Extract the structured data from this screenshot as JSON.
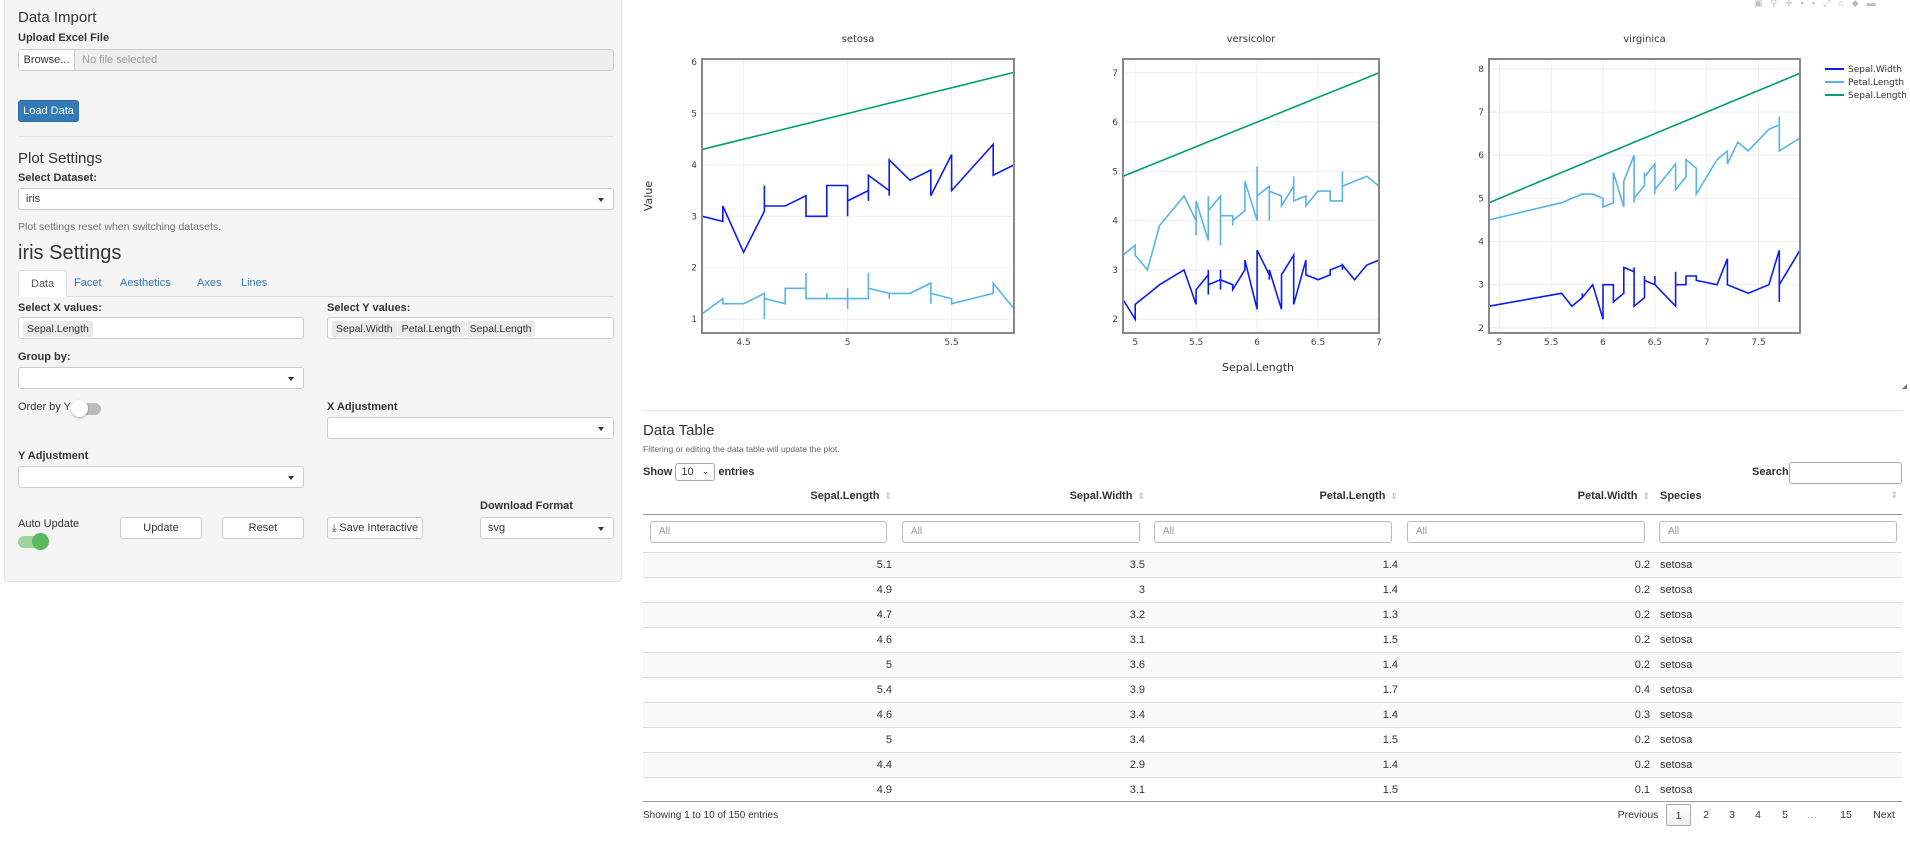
{
  "sidebar": {
    "data_import_title": "Data Import",
    "upload_label": "Upload Excel File",
    "browse_label": "Browse...",
    "file_placeholder": "No file selected",
    "load_button": "Load Data",
    "plot_settings_title": "Plot Settings",
    "select_dataset_label": "Select Dataset:",
    "dataset_value": "iris",
    "dataset_help": "Plot settings reset when switching datasets.",
    "settings_title": "iris Settings",
    "tabs": [
      {
        "label": "Data",
        "active": true
      },
      {
        "label": "Facet"
      },
      {
        "label": "Aesthetics"
      },
      {
        "label": "Axes"
      },
      {
        "label": "Lines"
      }
    ],
    "x_label": "Select X values:",
    "x_values": [
      "Sepal.Length"
    ],
    "y_label": "Select Y values:",
    "y_values": [
      "Sepal.Width",
      "Petal.Length",
      "Sepal.Length"
    ],
    "group_label": "Group by:",
    "group_value": "",
    "order_label": "Order by Y",
    "order_on": false,
    "x_adjust_label": "X Adjustment",
    "x_adjust_value": "",
    "y_adjust_label": "Y Adjustment",
    "y_adjust_value": "",
    "auto_update_label": "Auto Update",
    "auto_update_on": true,
    "update_button": "Update",
    "reset_button": "Reset",
    "save_button": "Save Interactive",
    "download_label": "Download Format",
    "download_value": "svg",
    "accent_color": "#337ab7",
    "toggle_on_color": "#5cb85c"
  },
  "chart_data": {
    "type": "line",
    "facet_by": "Species",
    "xlabel": "Sepal.Length",
    "ylabel": "Value",
    "legend_position": "top-right",
    "grid": true,
    "series": [
      {
        "name": "Sepal.Width",
        "color": "#0b1cf0"
      },
      {
        "name": "Petal.Length",
        "color": "#56b4e9"
      },
      {
        "name": "Sepal.Length",
        "color": "#009e73"
      }
    ],
    "panels": [
      {
        "title": "setosa",
        "xlim": [
          4.3,
          5.8
        ],
        "ylim": [
          0.73,
          6.06
        ],
        "xticks": [
          4.5,
          5,
          5.5
        ],
        "yticks": [
          1,
          2,
          3,
          4,
          5,
          6
        ],
        "data": {
          "Sepal.Length": [
            5.1,
            4.9,
            4.7,
            4.6,
            5.0,
            5.4,
            4.6,
            5.0,
            4.4,
            4.9,
            5.4,
            4.8,
            4.8,
            4.3,
            5.8,
            5.7,
            5.4,
            5.1,
            5.7,
            5.1,
            5.4,
            5.1,
            4.6,
            5.1,
            4.8,
            5.0,
            5.0,
            5.2,
            5.2,
            4.7,
            4.8,
            5.4,
            5.2,
            5.5,
            4.9,
            5.0,
            5.5,
            4.9,
            4.4,
            5.1,
            5.0,
            4.5,
            4.4,
            5.0,
            5.1,
            4.8,
            5.1,
            4.6,
            5.3,
            5.0
          ],
          "Sepal.Width": [
            3.5,
            3.0,
            3.2,
            3.1,
            3.6,
            3.9,
            3.4,
            3.4,
            2.9,
            3.1,
            3.7,
            3.4,
            3.0,
            3.0,
            4.0,
            4.4,
            3.9,
            3.5,
            3.8,
            3.8,
            3.4,
            3.7,
            3.6,
            3.3,
            3.4,
            3.0,
            3.4,
            3.5,
            3.4,
            3.2,
            3.1,
            3.4,
            4.1,
            4.2,
            3.1,
            3.2,
            3.5,
            3.6,
            3.0,
            3.4,
            3.5,
            2.3,
            3.2,
            3.5,
            3.8,
            3.0,
            3.8,
            3.2,
            3.7,
            3.3
          ],
          "Petal.Length": [
            1.4,
            1.4,
            1.3,
            1.5,
            1.4,
            1.7,
            1.4,
            1.5,
            1.4,
            1.5,
            1.5,
            1.6,
            1.4,
            1.1,
            1.2,
            1.5,
            1.3,
            1.4,
            1.7,
            1.5,
            1.7,
            1.5,
            1.0,
            1.7,
            1.9,
            1.6,
            1.6,
            1.5,
            1.4,
            1.6,
            1.6,
            1.5,
            1.5,
            1.4,
            1.5,
            1.2,
            1.3,
            1.4,
            1.3,
            1.5,
            1.3,
            1.3,
            1.3,
            1.6,
            1.9,
            1.4,
            1.6,
            1.4,
            1.5,
            1.4
          ]
        }
      },
      {
        "title": "versicolor",
        "xlim": [
          4.9,
          7.0
        ],
        "ylim": [
          1.72,
          7.28
        ],
        "xticks": [
          5,
          5.5,
          6,
          6.5,
          7
        ],
        "yticks": [
          2,
          3,
          4,
          5,
          6,
          7
        ],
        "data": {
          "Sepal.Length": [
            7.0,
            6.4,
            6.9,
            5.5,
            6.5,
            5.7,
            6.3,
            4.9,
            6.6,
            5.2,
            5.0,
            5.9,
            6.0,
            6.1,
            5.6,
            6.7,
            5.6,
            5.8,
            6.2,
            5.6,
            5.9,
            6.1,
            6.3,
            6.1,
            6.4,
            6.6,
            6.8,
            6.7,
            6.0,
            5.7,
            5.5,
            5.5,
            5.8,
            6.0,
            5.4,
            6.0,
            6.7,
            6.3,
            5.6,
            5.5,
            5.5,
            6.1,
            5.8,
            5.0,
            5.6,
            5.7,
            5.7,
            6.2,
            5.1,
            5.7
          ],
          "Sepal.Width": [
            3.2,
            3.2,
            3.1,
            2.3,
            2.8,
            2.8,
            3.3,
            2.4,
            2.9,
            2.7,
            2.0,
            3.0,
            2.2,
            2.9,
            2.9,
            3.1,
            3.0,
            2.7,
            2.2,
            2.5,
            3.2,
            2.8,
            2.5,
            2.8,
            2.9,
            3.0,
            2.8,
            3.0,
            2.9,
            2.6,
            2.4,
            2.4,
            2.7,
            2.7,
            3.0,
            3.4,
            3.1,
            2.3,
            3.0,
            2.5,
            2.6,
            3.0,
            2.6,
            2.3,
            2.7,
            3.0,
            2.9,
            2.9,
            2.5,
            2.8
          ],
          "Petal.Length": [
            4.7,
            4.5,
            4.9,
            4.0,
            4.6,
            4.5,
            4.7,
            3.3,
            4.6,
            3.9,
            3.5,
            4.2,
            4.0,
            4.7,
            3.6,
            4.4,
            4.5,
            4.1,
            4.5,
            3.9,
            4.8,
            4.0,
            4.9,
            4.7,
            4.3,
            4.4,
            4.8,
            5.0,
            4.5,
            3.5,
            3.8,
            3.7,
            3.9,
            5.1,
            4.5,
            4.5,
            4.7,
            4.4,
            4.1,
            4.0,
            4.4,
            4.6,
            4.0,
            3.3,
            4.2,
            4.2,
            4.2,
            4.3,
            3.0,
            4.1
          ]
        }
      },
      {
        "title": "virginica",
        "xlim": [
          4.9,
          7.9
        ],
        "ylim": [
          1.88,
          8.23
        ],
        "xticks": [
          5,
          5.5,
          6,
          6.5,
          7,
          7.5
        ],
        "yticks": [
          2,
          3,
          4,
          5,
          6,
          7,
          8
        ],
        "data": {
          "Sepal.Length": [
            6.3,
            5.8,
            7.1,
            6.3,
            6.5,
            7.6,
            4.9,
            7.3,
            6.7,
            7.2,
            6.5,
            6.4,
            6.8,
            5.7,
            5.8,
            6.4,
            6.5,
            7.7,
            7.7,
            6.0,
            6.9,
            5.6,
            7.7,
            6.3,
            6.7,
            7.2,
            6.2,
            6.1,
            6.4,
            7.2,
            7.4,
            7.9,
            6.4,
            6.3,
            6.1,
            7.7,
            6.3,
            6.4,
            6.0,
            6.9,
            6.7,
            6.9,
            5.8,
            6.8,
            6.7,
            6.7,
            6.3,
            6.5,
            6.2,
            5.9
          ],
          "Sepal.Width": [
            3.3,
            2.7,
            3.0,
            2.9,
            3.0,
            3.0,
            2.5,
            2.9,
            2.5,
            3.6,
            3.2,
            2.7,
            3.0,
            2.5,
            2.8,
            3.2,
            3.0,
            3.8,
            2.6,
            2.2,
            3.2,
            2.8,
            2.8,
            2.7,
            3.3,
            3.2,
            2.8,
            3.0,
            2.8,
            3.0,
            2.8,
            3.8,
            2.8,
            2.8,
            2.6,
            3.0,
            3.4,
            3.1,
            3.0,
            3.1,
            3.1,
            3.1,
            2.7,
            3.2,
            3.3,
            3.0,
            2.5,
            3.0,
            3.4,
            3.0
          ],
          "Petal.Length": [
            6.0,
            5.1,
            5.9,
            5.6,
            5.8,
            6.6,
            4.5,
            6.3,
            5.8,
            6.1,
            5.1,
            5.3,
            5.5,
            5.0,
            5.1,
            5.3,
            5.5,
            6.7,
            6.9,
            5.0,
            5.7,
            4.9,
            6.7,
            4.9,
            5.7,
            6.0,
            4.8,
            4.9,
            5.6,
            5.8,
            6.1,
            6.4,
            5.6,
            5.1,
            5.6,
            6.1,
            5.6,
            5.5,
            4.8,
            5.4,
            5.6,
            5.1,
            5.1,
            5.9,
            5.7,
            5.2,
            5.0,
            5.2,
            5.4,
            5.1
          ]
        }
      }
    ]
  },
  "table": {
    "title": "Data Table",
    "subtitle": "Filtering or editing the data table will update the plot.",
    "show_label": "Show",
    "page_length": "10",
    "entries_label": "entries",
    "search_label": "Search:",
    "search_value": "",
    "filter_placeholder": "All",
    "columns": [
      "Sepal.Length",
      "Sepal.Width",
      "Petal.Length",
      "Petal.Width",
      "Species"
    ],
    "rows": [
      [
        "5.1",
        "3.5",
        "1.4",
        "0.2",
        "setosa"
      ],
      [
        "4.9",
        "3",
        "1.4",
        "0.2",
        "setosa"
      ],
      [
        "4.7",
        "3.2",
        "1.3",
        "0.2",
        "setosa"
      ],
      [
        "4.6",
        "3.1",
        "1.5",
        "0.2",
        "setosa"
      ],
      [
        "5",
        "3.6",
        "1.4",
        "0.2",
        "setosa"
      ],
      [
        "5.4",
        "3.9",
        "1.7",
        "0.4",
        "setosa"
      ],
      [
        "4.6",
        "3.4",
        "1.4",
        "0.3",
        "setosa"
      ],
      [
        "5",
        "3.4",
        "1.5",
        "0.2",
        "setosa"
      ],
      [
        "4.4",
        "2.9",
        "1.4",
        "0.2",
        "setosa"
      ],
      [
        "4.9",
        "3.1",
        "1.5",
        "0.1",
        "setosa"
      ]
    ],
    "info": "Showing 1 to 10 of 150 entries",
    "pagination": {
      "previous": "Previous",
      "pages": [
        "1",
        "2",
        "3",
        "4",
        "5",
        "…",
        "15"
      ],
      "current": "1",
      "next": "Next"
    }
  }
}
